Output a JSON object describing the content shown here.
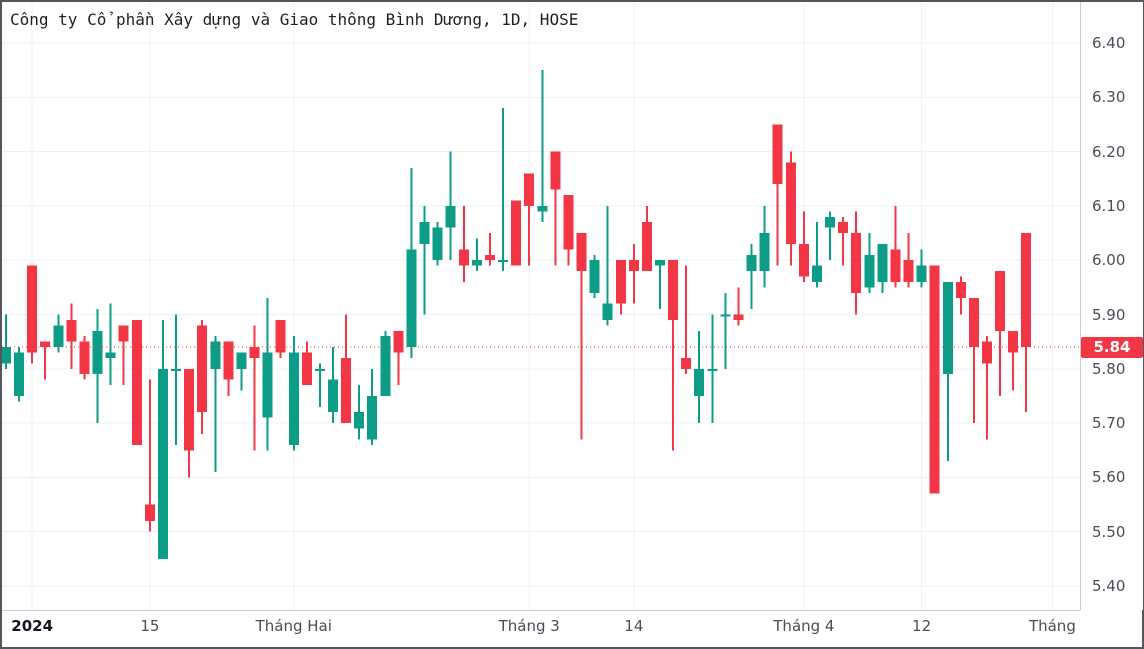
{
  "title": "Công ty Cổ phần Xây dựng và Giao thông Bình Dương, 1D, HOSE",
  "legend": {
    "symbol_description": "Công ty Cổ phần Xây dựng và Giao thông Bình Dương",
    "interval": "1D",
    "exchange": "HOSE"
  },
  "current_price": {
    "value": "5.84"
  },
  "colors": {
    "up": "#0d9c86",
    "down": "#f23645",
    "grid": "#eef0f3",
    "axis_border": "#c9ccd4",
    "tick_text": "#494d57",
    "title_text": "#1d2026",
    "frame": "#54565b",
    "price_line": "#f23645",
    "badge_bg": "#f23645",
    "badge_text": "#ffffff",
    "background": "#ffffff"
  },
  "chart_data": {
    "type": "candlestick",
    "title": "Công ty Cổ phần Xây dựng và Giao thông Bình Dương, 1D, HOSE",
    "ylabel": "",
    "xlabel": "",
    "ylim": [
      5.355,
      6.475
    ],
    "grid": true,
    "y_ticks": [
      {
        "price": 6.4,
        "label": "6.40"
      },
      {
        "price": 6.3,
        "label": "6.30"
      },
      {
        "price": 6.2,
        "label": "6.20"
      },
      {
        "price": 6.1,
        "label": "6.10"
      },
      {
        "price": 6.0,
        "label": "6.00"
      },
      {
        "price": 5.9,
        "label": "5.90"
      },
      {
        "price": 5.8,
        "label": "5.80"
      },
      {
        "price": 5.7,
        "label": "5.70"
      },
      {
        "price": 5.6,
        "label": "5.60"
      },
      {
        "price": 5.5,
        "label": "5.50"
      },
      {
        "price": 5.4,
        "label": "5.40"
      }
    ],
    "x_labels": [
      {
        "text": "2024",
        "index": 2,
        "bold": true
      },
      {
        "text": "15",
        "index": 11,
        "bold": false
      },
      {
        "text": "Tháng Hai",
        "index": 22,
        "bold": false
      },
      {
        "text": "Tháng 3",
        "index": 40,
        "bold": false
      },
      {
        "text": "14",
        "index": 48,
        "bold": false
      },
      {
        "text": "Tháng 4",
        "index": 61,
        "bold": false
      },
      {
        "text": "12",
        "index": 70,
        "bold": false
      },
      {
        "text": "Tháng",
        "index": 80,
        "bold": false
      }
    ],
    "price_line": 5.84,
    "candles_format": [
      "open",
      "high",
      "low",
      "close"
    ],
    "candles": [
      [
        5.81,
        5.9,
        5.8,
        5.84
      ],
      [
        5.75,
        5.84,
        5.74,
        5.83
      ],
      [
        5.99,
        5.99,
        5.81,
        5.83
      ],
      [
        5.85,
        5.85,
        5.78,
        5.84
      ],
      [
        5.84,
        5.9,
        5.83,
        5.88
      ],
      [
        5.89,
        5.92,
        5.8,
        5.85
      ],
      [
        5.85,
        5.86,
        5.78,
        5.79
      ],
      [
        5.79,
        5.91,
        5.7,
        5.87
      ],
      [
        5.82,
        5.92,
        5.77,
        5.83
      ],
      [
        5.88,
        5.88,
        5.77,
        5.85
      ],
      [
        5.89,
        5.89,
        5.66,
        5.66
      ],
      [
        5.55,
        5.78,
        5.5,
        5.52
      ],
      [
        5.45,
        5.89,
        5.45,
        5.8
      ],
      [
        5.8,
        5.9,
        5.66,
        5.8
      ],
      [
        5.8,
        5.8,
        5.6,
        5.65
      ],
      [
        5.88,
        5.89,
        5.68,
        5.72
      ],
      [
        5.8,
        5.86,
        5.61,
        5.85
      ],
      [
        5.85,
        5.85,
        5.75,
        5.78
      ],
      [
        5.8,
        5.83,
        5.76,
        5.83
      ],
      [
        5.84,
        5.88,
        5.65,
        5.82
      ],
      [
        5.71,
        5.93,
        5.65,
        5.83
      ],
      [
        5.89,
        5.89,
        5.82,
        5.83
      ],
      [
        5.66,
        5.86,
        5.65,
        5.83
      ],
      [
        5.83,
        5.85,
        5.77,
        5.77
      ],
      [
        5.8,
        5.81,
        5.73,
        5.8
      ],
      [
        5.72,
        5.84,
        5.7,
        5.78
      ],
      [
        5.82,
        5.9,
        5.7,
        5.7
      ],
      [
        5.69,
        5.77,
        5.67,
        5.72
      ],
      [
        5.67,
        5.8,
        5.66,
        5.75
      ],
      [
        5.75,
        5.87,
        5.75,
        5.86
      ],
      [
        5.87,
        5.87,
        5.77,
        5.83
      ],
      [
        5.84,
        6.17,
        5.82,
        6.02
      ],
      [
        6.03,
        6.1,
        5.9,
        6.07
      ],
      [
        6.0,
        6.07,
        5.99,
        6.06
      ],
      [
        6.06,
        6.2,
        6.0,
        6.1
      ],
      [
        6.02,
        6.1,
        5.96,
        5.99
      ],
      [
        5.99,
        6.04,
        5.98,
        6.0
      ],
      [
        6.01,
        6.05,
        5.99,
        6.0
      ],
      [
        6.0,
        6.28,
        5.98,
        6.0
      ],
      [
        6.11,
        6.11,
        5.99,
        5.99
      ],
      [
        6.16,
        6.16,
        5.99,
        6.1
      ],
      [
        6.09,
        6.35,
        6.07,
        6.1
      ],
      [
        6.2,
        6.2,
        5.99,
        6.13
      ],
      [
        6.12,
        6.12,
        5.99,
        6.02
      ],
      [
        6.05,
        6.05,
        5.67,
        5.98
      ],
      [
        5.94,
        6.01,
        5.93,
        6.0
      ],
      [
        5.89,
        6.1,
        5.88,
        5.92
      ],
      [
        6.0,
        6.0,
        5.9,
        5.92
      ],
      [
        6.0,
        6.03,
        5.92,
        5.98
      ],
      [
        6.07,
        6.1,
        5.98,
        5.98
      ],
      [
        5.99,
        6.0,
        5.91,
        6.0
      ],
      [
        6.0,
        6.0,
        5.65,
        5.89
      ],
      [
        5.82,
        5.99,
        5.79,
        5.8
      ],
      [
        5.75,
        5.87,
        5.7,
        5.8
      ],
      [
        5.8,
        5.9,
        5.7,
        5.8
      ],
      [
        5.9,
        5.94,
        5.8,
        5.9
      ],
      [
        5.9,
        5.95,
        5.88,
        5.89
      ],
      [
        5.98,
        6.03,
        5.91,
        6.01
      ],
      [
        5.98,
        6.1,
        5.95,
        6.05
      ],
      [
        6.25,
        6.25,
        5.99,
        6.14
      ],
      [
        6.18,
        6.2,
        5.99,
        6.03
      ],
      [
        6.03,
        6.09,
        5.96,
        5.97
      ],
      [
        5.96,
        6.07,
        5.95,
        5.99
      ],
      [
        6.06,
        6.09,
        6.0,
        6.08
      ],
      [
        6.07,
        6.08,
        5.99,
        6.05
      ],
      [
        6.05,
        6.09,
        5.9,
        5.94
      ],
      [
        5.95,
        6.05,
        5.94,
        6.01
      ],
      [
        5.96,
        6.03,
        5.94,
        6.03
      ],
      [
        6.02,
        6.1,
        5.95,
        5.96
      ],
      [
        6.0,
        6.05,
        5.95,
        5.96
      ],
      [
        5.96,
        6.02,
        5.95,
        5.99
      ],
      [
        5.99,
        5.99,
        5.57,
        5.57
      ],
      [
        5.79,
        5.96,
        5.63,
        5.96
      ],
      [
        5.96,
        5.97,
        5.9,
        5.93
      ],
      [
        5.93,
        5.93,
        5.7,
        5.84
      ],
      [
        5.85,
        5.86,
        5.67,
        5.81
      ],
      [
        5.98,
        5.98,
        5.75,
        5.87
      ],
      [
        5.87,
        5.87,
        5.76,
        5.83
      ],
      [
        6.05,
        6.05,
        5.72,
        5.84
      ]
    ]
  }
}
